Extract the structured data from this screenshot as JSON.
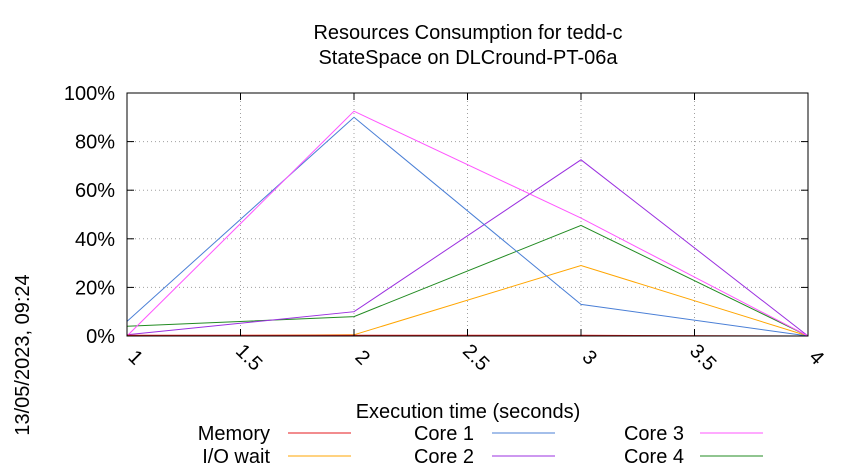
{
  "chart_data": {
    "type": "line",
    "title": "Resources Consumption for tedd-c",
    "subtitle": "StateSpace on DLCround-PT-06a",
    "xlabel": "Execution time (seconds)",
    "ylabel": "",
    "side_label": "13/05/2023, 09:24",
    "xlim": [
      1,
      4
    ],
    "ylim": [
      0,
      100
    ],
    "x_ticks": [
      "1",
      "1.5",
      "2",
      "2.5",
      "3",
      "3.5",
      "4"
    ],
    "x_tick_values": [
      1,
      1.5,
      2,
      2.5,
      3,
      3.5,
      4
    ],
    "y_ticks": [
      "0%",
      "20%",
      "40%",
      "60%",
      "80%",
      "100%"
    ],
    "y_tick_values": [
      0,
      20,
      40,
      60,
      80,
      100
    ],
    "grid": true,
    "legend_position": "bottom",
    "x": [
      1,
      2,
      3,
      4
    ],
    "series": [
      {
        "name": "Memory",
        "color": "#e41a1c",
        "values": [
          0.3,
          0.3,
          0.3,
          0
        ]
      },
      {
        "name": "I/O wait",
        "color": "#ffa500",
        "values": [
          0,
          0.5,
          29,
          0
        ]
      },
      {
        "name": "Core 1",
        "color": "#4a7fd6",
        "values": [
          6,
          90,
          13,
          0
        ]
      },
      {
        "name": "Core 2",
        "color": "#9b30e0",
        "values": [
          0.5,
          10,
          72.5,
          0
        ]
      },
      {
        "name": "Core 3",
        "color": "#ff55ff",
        "values": [
          0,
          92.5,
          48.5,
          0
        ]
      },
      {
        "name": "Core 4",
        "color": "#228b22",
        "values": [
          4,
          8,
          45.5,
          0
        ]
      }
    ]
  }
}
